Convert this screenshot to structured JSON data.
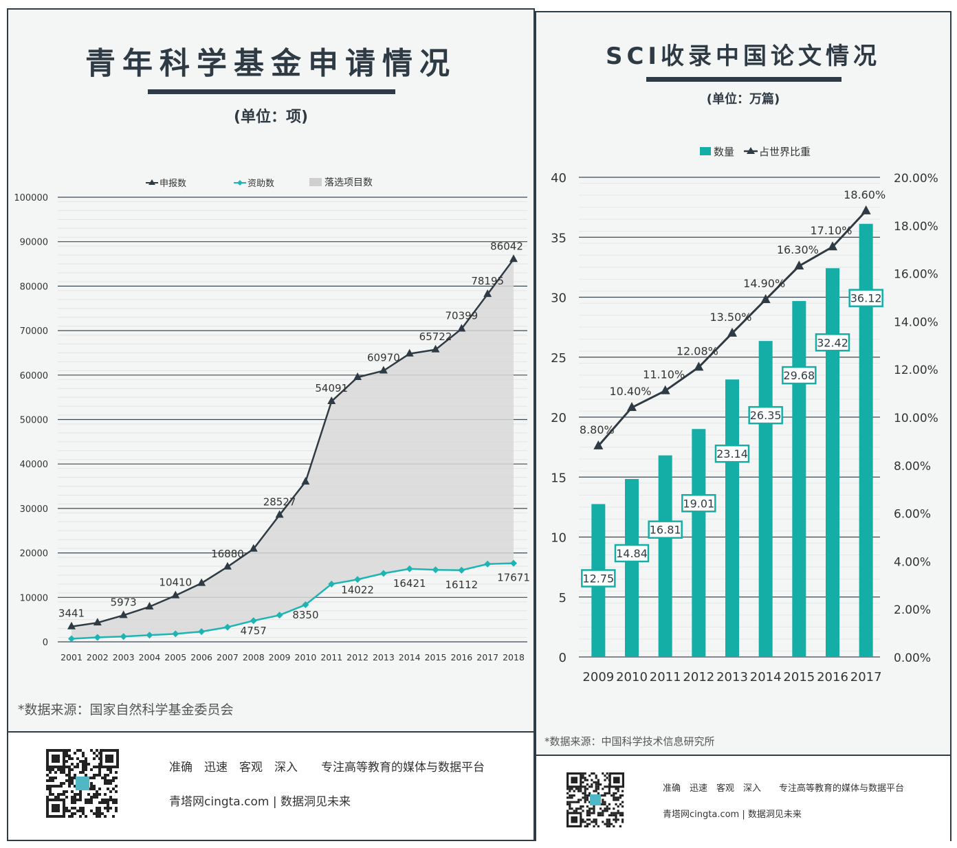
{
  "left": {
    "title": "青年科学基金申请情况",
    "unit": "(单位：项)",
    "source": "*数据来源：国家自然科学基金委员会",
    "tagline": "准确　迅速　客观　深入　　专注高等教育的媒体与数据平台",
    "site": "青塔网cingta.com | 数据洞见未来",
    "colors": {
      "applications": "#2e3a44",
      "funded": "#1fb4b4",
      "area": "#d8d8d8"
    }
  },
  "right": {
    "title": "SCI收录中国论文情况",
    "unit": "(单位：万篇)",
    "source": "*数据来源：中国科学技术信息研究所",
    "tagline": "准确　迅速　客观　深入　　专注高等教育的媒体与数据平台",
    "site": "青塔网cingta.com | 数据洞见未来",
    "colors": {
      "bar": "#14aea6",
      "line": "#2e3a44"
    }
  },
  "chart_data": [
    {
      "type": "line",
      "title": "青年科学基金申请情况",
      "ylabel": "(单位：项)",
      "x": [
        "2001",
        "2002",
        "2003",
        "2004",
        "2005",
        "2006",
        "2007",
        "2008",
        "2009",
        "2010",
        "2011",
        "2012",
        "2013",
        "2014",
        "2015",
        "2016",
        "2017",
        "2018"
      ],
      "yticks": [
        "0",
        "10000",
        "20000",
        "30000",
        "40000",
        "50000",
        "60000",
        "70000",
        "80000",
        "90000",
        "100000"
      ],
      "ylim": [
        0,
        100000
      ],
      "legend": [
        "申报数",
        "资助数",
        "落选项目数"
      ],
      "series": [
        {
          "name": "申报数",
          "values": [
            3441,
            4300,
            5973,
            7900,
            10410,
            13200,
            16880,
            20900,
            28527,
            36000,
            54091,
            59500,
            60970,
            64800,
            65722,
            70399,
            78195,
            86042
          ]
        },
        {
          "name": "资助数",
          "values": [
            700,
            1000,
            1200,
            1500,
            1800,
            2300,
            3300,
            4757,
            6000,
            8350,
            13000,
            14022,
            15400,
            16421,
            16200,
            16112,
            17500,
            17671
          ]
        }
      ],
      "area": {
        "name": "落选项目数",
        "between": [
          "申报数",
          "资助数"
        ]
      },
      "annotations": [
        {
          "x": "2001",
          "series": "申报数",
          "text": "3441"
        },
        {
          "x": "2003",
          "series": "申报数",
          "text": "5973"
        },
        {
          "x": "2005",
          "series": "申报数",
          "text": "10410"
        },
        {
          "x": "2007",
          "series": "申报数",
          "text": "16880"
        },
        {
          "x": "2009",
          "series": "申报数",
          "text": "28527"
        },
        {
          "x": "2011",
          "series": "申报数",
          "text": "54091"
        },
        {
          "x": "2013",
          "series": "申报数",
          "text": "60970"
        },
        {
          "x": "2015",
          "series": "申报数",
          "text": "65722"
        },
        {
          "x": "2016",
          "series": "申报数",
          "text": "70399"
        },
        {
          "x": "2017",
          "series": "申报数",
          "text": "78195"
        },
        {
          "x": "2018",
          "series": "申报数",
          "text": "86042"
        },
        {
          "x": "2008",
          "series": "资助数",
          "text": "4757"
        },
        {
          "x": "2010",
          "series": "资助数",
          "text": "8350"
        },
        {
          "x": "2012",
          "series": "资助数",
          "text": "14022"
        },
        {
          "x": "2014",
          "series": "资助数",
          "text": "16421"
        },
        {
          "x": "2016",
          "series": "资助数",
          "text": "16112"
        },
        {
          "x": "2018",
          "series": "资助数",
          "text": "17671"
        }
      ],
      "grid": true,
      "legend_position": "top"
    },
    {
      "type": "bar",
      "title": "SCI收录中国论文情况",
      "ylabel": "(单位：万篇)",
      "categories": [
        "2009",
        "2010",
        "2011",
        "2012",
        "2013",
        "2014",
        "2015",
        "2016",
        "2017"
      ],
      "yticks": [
        "0",
        "5",
        "10",
        "15",
        "20",
        "25",
        "30",
        "35",
        "40"
      ],
      "ylim": [
        0,
        40
      ],
      "y2ticks": [
        "0.00%",
        "2.00%",
        "4.00%",
        "6.00%",
        "8.00%",
        "10.00%",
        "12.00%",
        "14.00%",
        "16.00%",
        "18.00%",
        "20.00%"
      ],
      "y2lim": [
        0,
        20
      ],
      "legend": [
        "数量",
        "占世界比重"
      ],
      "series": [
        {
          "name": "数量",
          "kind": "bar",
          "axis": "left",
          "values": [
            12.75,
            14.84,
            16.81,
            19.01,
            23.14,
            26.35,
            29.68,
            32.42,
            36.12
          ],
          "labels": [
            "12.75",
            "14.84",
            "16.81",
            "19.01",
            "23.14",
            "26.35",
            "29.68",
            "32.42",
            "36.12"
          ]
        },
        {
          "name": "占世界比重",
          "kind": "line",
          "axis": "right",
          "values": [
            8.8,
            10.4,
            11.1,
            12.08,
            13.5,
            14.9,
            16.3,
            17.1,
            18.6
          ],
          "labels": [
            "8.80%",
            "10.40%",
            "11.10%",
            "12.08%",
            "13.50%",
            "14.90%",
            "16.30%",
            "17.10%",
            "18.60%"
          ]
        }
      ],
      "grid": true,
      "legend_position": "top"
    }
  ]
}
